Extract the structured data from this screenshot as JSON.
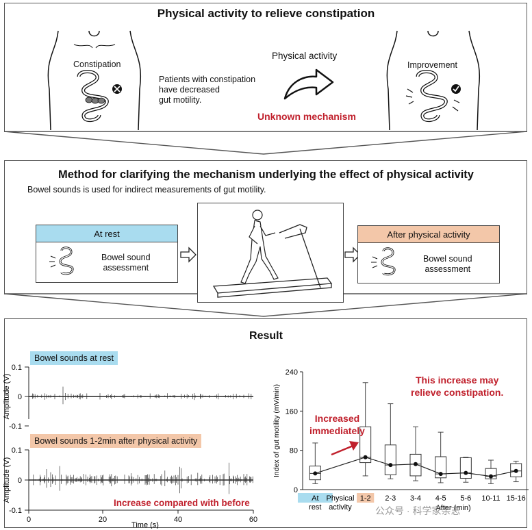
{
  "colors": {
    "rest": "#a9dcef",
    "after": "#f3c7a9",
    "red": "#c0202c",
    "line": "#333333"
  },
  "top": {
    "title": "Physical activity to relieve constipation",
    "constipation_label": "Constipation",
    "patients_text": [
      "Patients with constipation",
      "have decreased",
      "gut motility."
    ],
    "arrow_label": "Physical activity",
    "unknown": "Unknown mechanism",
    "improvement_label": "Improvement"
  },
  "method": {
    "title": "Method for clarifying the mechanism underlying the effect of physical activity",
    "subtitle": "Bowel sounds is used for indirect measurements of gut motility.",
    "rest_box": {
      "header": "At rest",
      "text": [
        "Bowel sound",
        "assessment"
      ]
    },
    "after_box": {
      "header": "After physical activity",
      "text": [
        "Bowel sound",
        "assessment"
      ]
    }
  },
  "result": {
    "title": "Result",
    "rest_tag": "Bowel sounds at rest",
    "after_tag": "Bowel sounds 1-2min after physical activity",
    "increase_note": "Increase compared with before",
    "amplitude_label": "Amplitude (V)",
    "time_label": "Time (s)",
    "amp_ticks": [
      "0.1",
      "0",
      "-0.1"
    ],
    "time_ticks": [
      "0",
      "20",
      "40",
      "60"
    ],
    "increase_text": [
      "This increase may",
      "relieve constipation."
    ],
    "immediately_text": [
      "Increased",
      "immediately"
    ],
    "watermark": "公众号 · 科学家杂志"
  },
  "chart_data": {
    "type": "box",
    "ylabel": "Index of gut motility  (mV/min)",
    "xlabel": "After (min)",
    "ylim": [
      0,
      240
    ],
    "yticks": [
      "0",
      "80",
      "160",
      "240"
    ],
    "categories": [
      "At rest",
      "Physical activity",
      "1-2",
      "2-3",
      "3-4",
      "4-5",
      "5-6",
      "10-11",
      "15-16"
    ],
    "series": [
      {
        "boxes": [
          {
            "category": "At rest",
            "min": 12,
            "q1": 20,
            "median": 33,
            "q3": 48,
            "max": 95
          },
          {
            "category": "1-2",
            "min": 28,
            "q1": 55,
            "median": 66,
            "q3": 128,
            "max": 218
          },
          {
            "category": "2-3",
            "min": 22,
            "q1": 30,
            "median": 50,
            "q3": 91,
            "max": 175
          },
          {
            "category": "3-4",
            "min": 18,
            "q1": 28,
            "median": 52,
            "q3": 72,
            "max": 128
          },
          {
            "category": "4-5",
            "min": 14,
            "q1": 24,
            "median": 32,
            "q3": 67,
            "max": 117
          },
          {
            "category": "5-6",
            "min": 15,
            "q1": 23,
            "median": 34,
            "q3": 65,
            "max": 66
          },
          {
            "category": "10-11",
            "min": 12,
            "q1": 22,
            "median": 27,
            "q3": 43,
            "max": 60
          },
          {
            "category": "15-16",
            "min": 16,
            "q1": 26,
            "median": 38,
            "q3": 53,
            "max": 58
          }
        ],
        "mean_line": [
          [
            "At rest",
            33
          ],
          [
            "1-2",
            66
          ],
          [
            "2-3",
            50
          ],
          [
            "3-4",
            52
          ],
          [
            "4-5",
            32
          ],
          [
            "5-6",
            34
          ],
          [
            "10-11",
            27
          ],
          [
            "15-16",
            38
          ]
        ]
      }
    ]
  }
}
